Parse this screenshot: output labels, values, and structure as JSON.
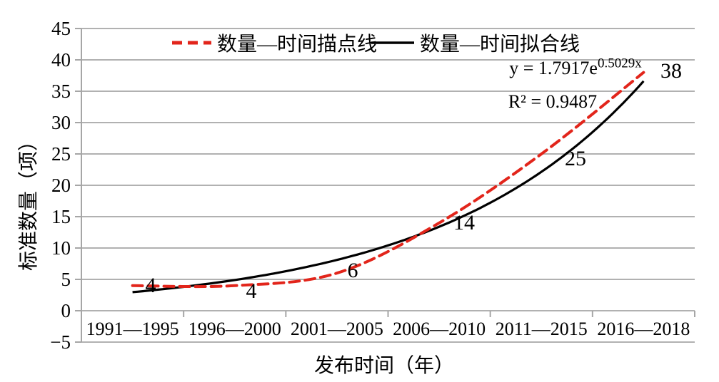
{
  "chart_data": {
    "type": "line",
    "categories": [
      "1991—1995",
      "1996—2000",
      "2001—2005",
      "2006—2010",
      "2011—2015",
      "2016—2018"
    ],
    "series": [
      {
        "name": "数量—时间描点线",
        "style": "dashed",
        "color": "#e2251b",
        "values": [
          4,
          4,
          6,
          14,
          25,
          38
        ],
        "point_labels": [
          "4",
          "4",
          "6",
          "14",
          "25",
          "38"
        ]
      },
      {
        "name": "数量—时间拟合线",
        "style": "solid",
        "color": "#000000",
        "fit": {
          "type": "exponential",
          "a": 1.7917,
          "b": 0.5029
        }
      }
    ],
    "xlabel": "发布时间（年）",
    "ylabel": "标准数量（项）",
    "ylim": [
      -5,
      45
    ],
    "ytick_step": 5,
    "ytick_labels": [
      "45",
      "40",
      "35",
      "30",
      "25",
      "20",
      "15",
      "10",
      "5",
      "0",
      "−5"
    ],
    "grid": true,
    "legend_position": "top",
    "annotations": {
      "equation_base": "y = 1.7917e",
      "equation_exponent": "0.5029x",
      "r_squared": "R² = 0.9487"
    }
  },
  "colors": {
    "plotted_line": "#e2251b",
    "fit_line": "#000000",
    "gridline": "#a6a6a6",
    "axis": "#a6a6a6",
    "text": "#000000"
  }
}
